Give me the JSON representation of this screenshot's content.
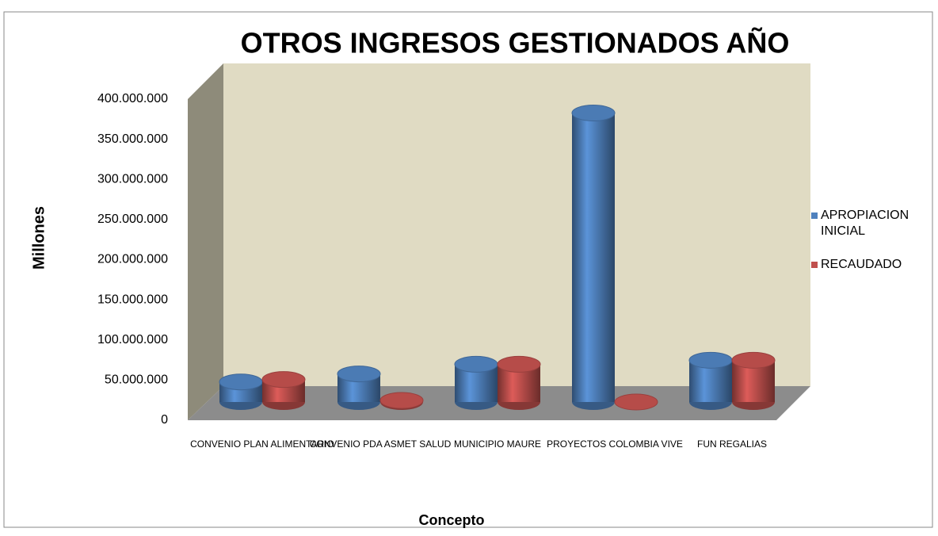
{
  "chart_data": {
    "type": "bar3d",
    "title": "OTROS INGRESOS GESTIONADOS AÑO",
    "xlabel": "Concepto",
    "ylabel": "Millones",
    "categories": [
      "CONVENIO PLAN ALIMENTARIO",
      "CONVENIO PDA ASMET SALUD",
      "MUNICIPIO MAURE",
      "PROYECTOS COLOMBIA VIVE",
      "FUN REGALIAS"
    ],
    "series": [
      {
        "name": "APROPIACION INICIAL",
        "color": "#4f81bd",
        "values": [
          25000000,
          35000000,
          47000000,
          360000000,
          52000000
        ]
      },
      {
        "name": "RECAUDADO",
        "color": "#c0504d",
        "values": [
          28000000,
          2000000,
          47000000,
          0,
          52000000
        ]
      }
    ],
    "ylim": [
      0,
      400000000
    ],
    "yticks": [
      0,
      {
        "value": 50000000,
        "label": "50.000.000"
      },
      {
        "value": 100000000,
        "label": "100.000.000"
      },
      {
        "value": 150000000,
        "label": "150.000.000"
      },
      {
        "value": 200000000,
        "label": "200.000.000"
      },
      {
        "value": 250000000,
        "label": "250.000.000"
      },
      {
        "value": 300000000,
        "label": "300.000.000"
      },
      {
        "value": 350000000,
        "label": "350.000.000"
      },
      {
        "value": 400000000,
        "label": "400.000.000"
      }
    ],
    "legend": "right"
  }
}
